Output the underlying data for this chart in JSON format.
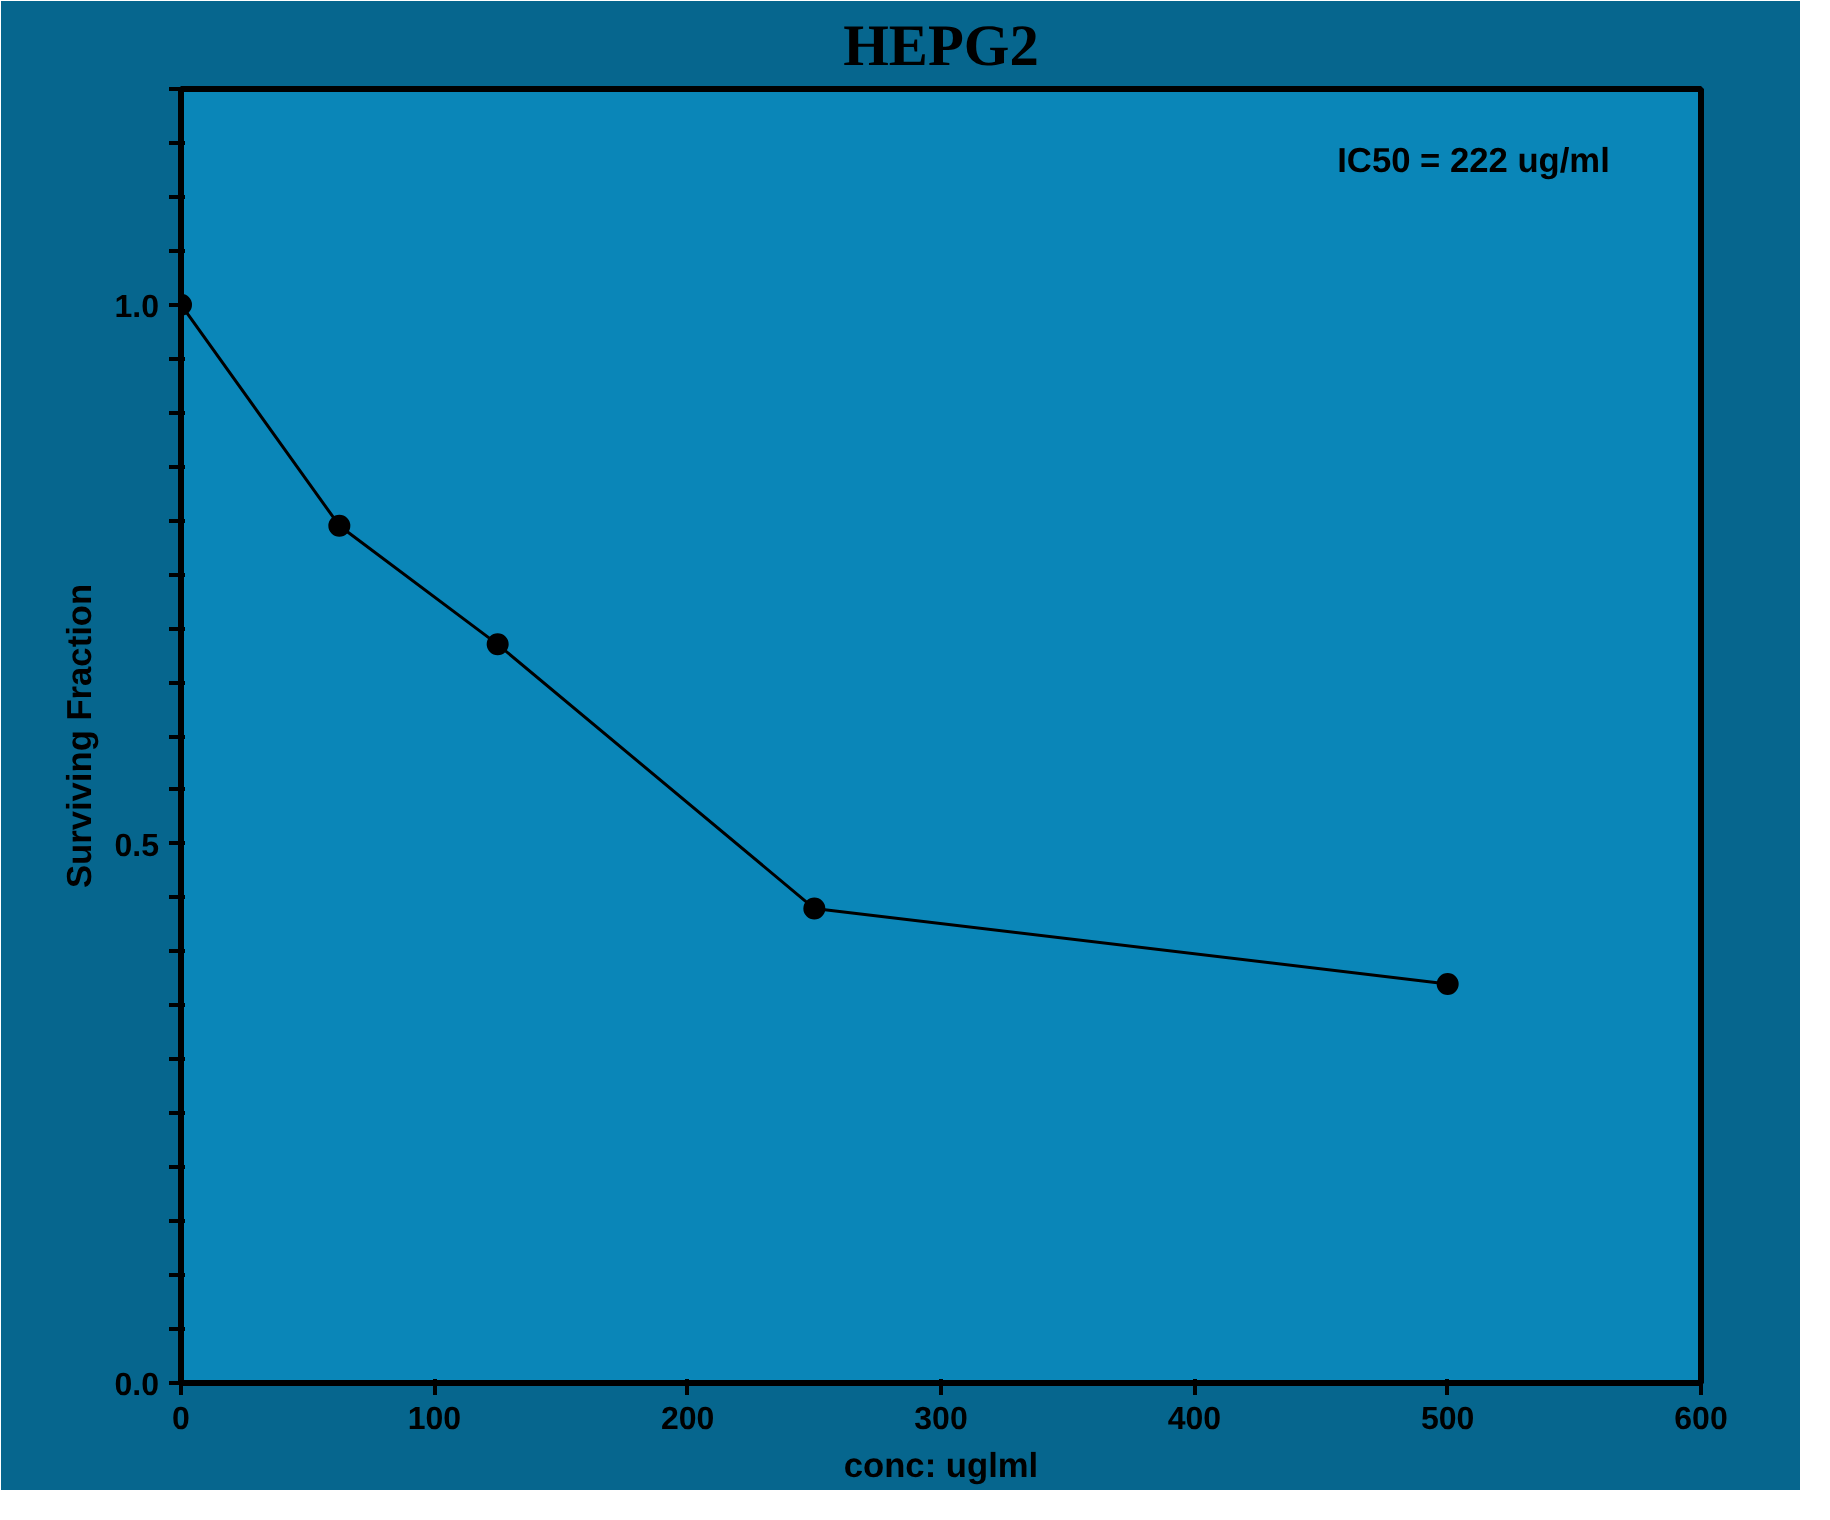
{
  "chart_data": {
    "type": "line",
    "title": "HEPG2",
    "xlabel": "conc: uglml",
    "ylabel": "Surviving Fraction",
    "x": [
      0,
      62.5,
      125,
      250,
      500
    ],
    "series": [
      {
        "color": "#000000",
        "values": [
          1.0,
          0.795,
          0.685,
          0.44,
          0.37
        ]
      }
    ],
    "xlim": [
      0,
      600
    ],
    "xticks": [
      0,
      100,
      200,
      300,
      400,
      500,
      600
    ],
    "ylim": [
      0,
      1.2
    ],
    "yticks": [
      {
        "value": 0,
        "label": "0.0"
      },
      {
        "value": 0.05,
        "label": null
      },
      {
        "value": 0.1,
        "label": null
      },
      {
        "value": 0.15,
        "label": null
      },
      {
        "value": 0.2,
        "label": null
      },
      {
        "value": 0.25,
        "label": null
      },
      {
        "value": 0.3,
        "label": null
      },
      {
        "value": 0.35,
        "label": null
      },
      {
        "value": 0.4,
        "label": null
      },
      {
        "value": 0.45,
        "label": null
      },
      {
        "value": 0.5,
        "label": "0.5"
      },
      {
        "value": 0.55,
        "label": null
      },
      {
        "value": 0.6,
        "label": null
      },
      {
        "value": 0.65,
        "label": null
      },
      {
        "value": 0.7,
        "label": null
      },
      {
        "value": 0.75,
        "label": null
      },
      {
        "value": 0.8,
        "label": null
      },
      {
        "value": 0.85,
        "label": null
      },
      {
        "value": 0.9,
        "label": null
      },
      {
        "value": 0.95,
        "label": null
      },
      {
        "value": 1.0,
        "label": "1.0"
      },
      {
        "value": 1.05,
        "label": null
      },
      {
        "value": 1.1,
        "label": null
      },
      {
        "value": 1.15,
        "label": null
      },
      {
        "value": 1.2,
        "label": null
      }
    ],
    "annotations": [
      "IC50 = 222 ug/ml"
    ],
    "grid": false,
    "marker": "circle",
    "line_style": "solid"
  }
}
